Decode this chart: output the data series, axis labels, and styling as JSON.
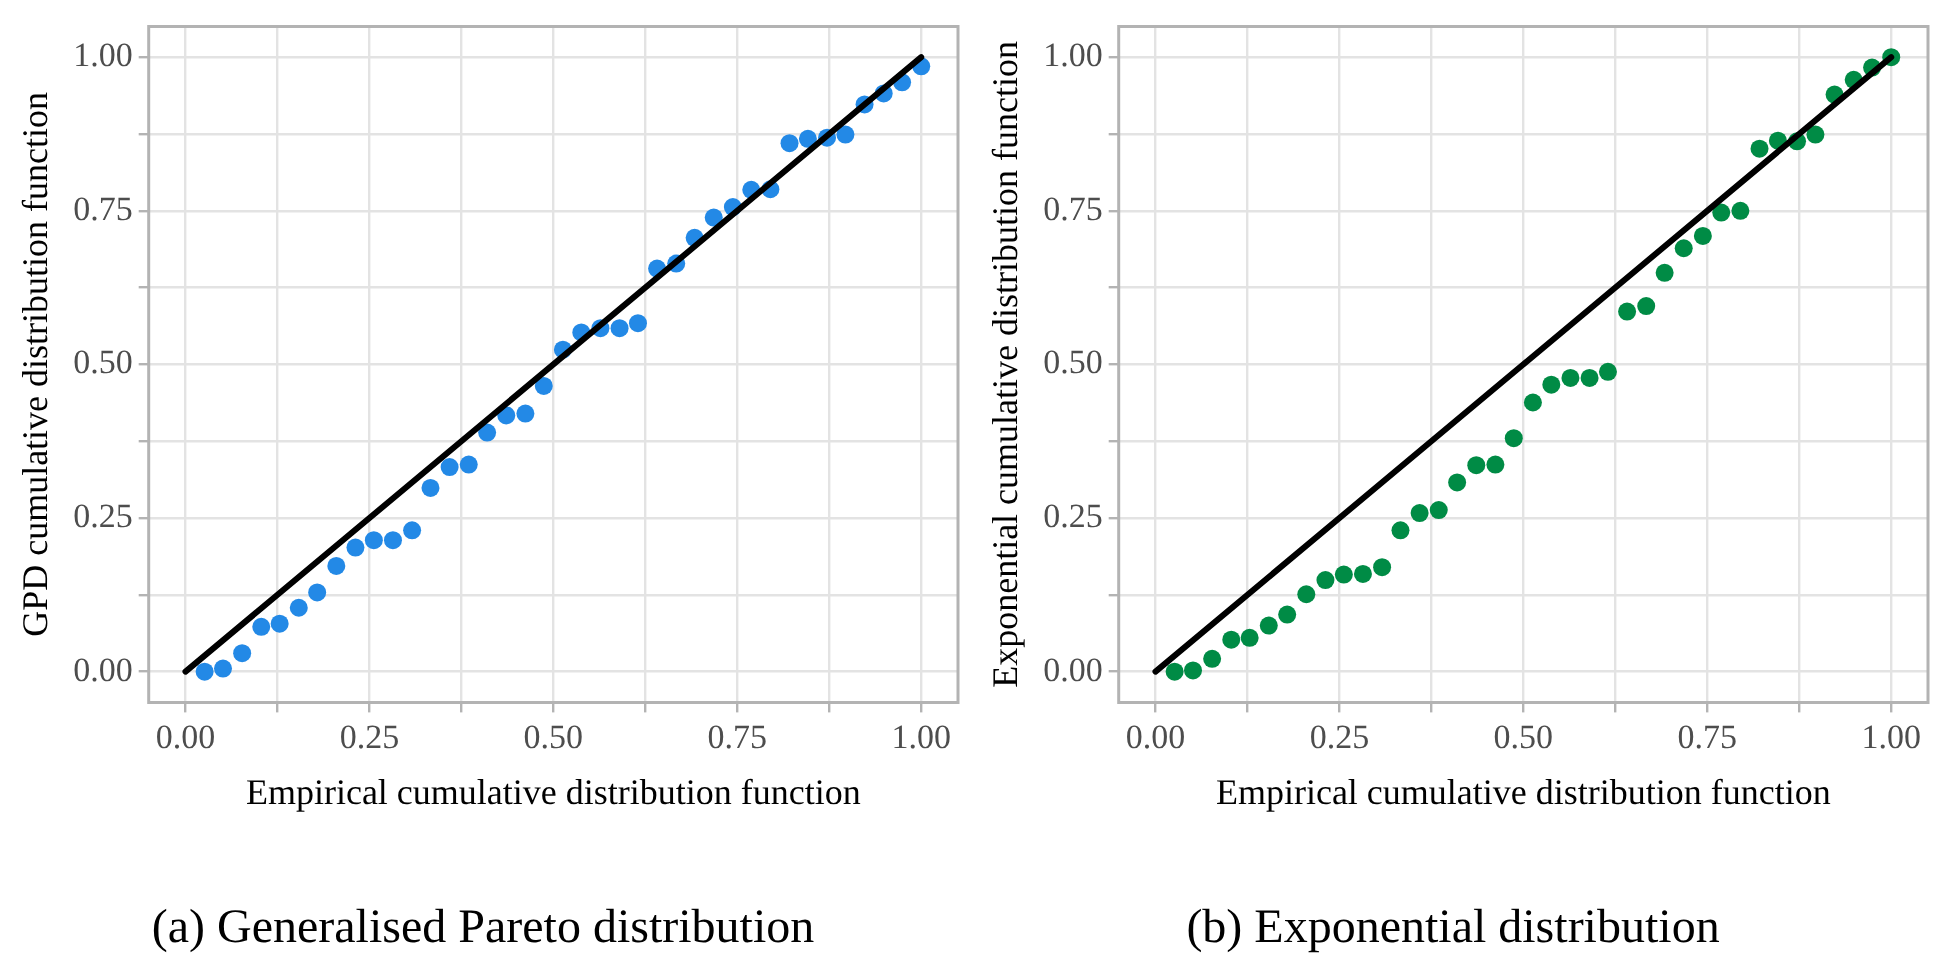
{
  "chart_data": [
    {
      "type": "scatter",
      "title": "(a) Generalised Pareto distribution",
      "xlabel": "Empirical cumulative distribution function",
      "ylabel": "GPD cumulative distribution function",
      "xlim": [
        -0.05,
        1.05
      ],
      "ylim": [
        -0.05,
        1.05
      ],
      "xticks": [
        {
          "value": 0,
          "label": "0.00"
        },
        {
          "value": 0.125,
          "label": null
        },
        {
          "value": 0.25,
          "label": "0.25"
        },
        {
          "value": 0.375,
          "label": null
        },
        {
          "value": 0.5,
          "label": "0.50"
        },
        {
          "value": 0.625,
          "label": null
        },
        {
          "value": 0.75,
          "label": "0.75"
        },
        {
          "value": 0.875,
          "label": null
        },
        {
          "value": 1,
          "label": "1.00"
        }
      ],
      "yticks": [
        {
          "value": 0,
          "label": "0.00"
        },
        {
          "value": 0.125,
          "label": null
        },
        {
          "value": 0.25,
          "label": "0.25"
        },
        {
          "value": 0.375,
          "label": null
        },
        {
          "value": 0.5,
          "label": "0.50"
        },
        {
          "value": 0.625,
          "label": null
        },
        {
          "value": 0.75,
          "label": "0.75"
        },
        {
          "value": 0.875,
          "label": null
        },
        {
          "value": 1,
          "label": "1.00"
        }
      ],
      "grid": true,
      "legend": false,
      "series": [
        {
          "type": "scatter",
          "marker": "circle",
          "color": "#2389e6",
          "x": [
            0.026,
            0.051,
            0.077,
            0.103,
            0.128,
            0.154,
            0.179,
            0.205,
            0.231,
            0.256,
            0.282,
            0.308,
            0.333,
            0.359,
            0.385,
            0.41,
            0.436,
            0.462,
            0.487,
            0.513,
            0.538,
            0.564,
            0.59,
            0.615,
            0.641,
            0.667,
            0.692,
            0.718,
            0.744,
            0.769,
            0.795,
            0.821,
            0.846,
            0.872,
            0.897,
            0.923,
            0.949,
            0.974,
            1.0
          ],
          "values": [
            0.0,
            0.005,
            0.03,
            0.073,
            0.078,
            0.104,
            0.129,
            0.172,
            0.202,
            0.214,
            0.214,
            0.23,
            0.299,
            0.333,
            0.337,
            0.389,
            0.417,
            0.42,
            0.465,
            0.524,
            0.552,
            0.559,
            0.559,
            0.567,
            0.656,
            0.664,
            0.706,
            0.739,
            0.756,
            0.784,
            0.785,
            0.86,
            0.867,
            0.869,
            0.874,
            0.923,
            0.941,
            0.959,
            0.985
          ]
        },
        {
          "type": "line",
          "marker": "none",
          "color": "#000000",
          "x": [
            0,
            1
          ],
          "values": [
            0,
            1
          ]
        }
      ]
    },
    {
      "type": "scatter",
      "title": "(b) Exponential distribution",
      "xlabel": "Empirical cumulative distribution function",
      "ylabel": "Exponential cumulative distribution function",
      "xlim": [
        -0.05,
        1.05
      ],
      "ylim": [
        -0.05,
        1.05
      ],
      "xticks": [
        {
          "value": 0,
          "label": "0.00"
        },
        {
          "value": 0.125,
          "label": null
        },
        {
          "value": 0.25,
          "label": "0.25"
        },
        {
          "value": 0.375,
          "label": null
        },
        {
          "value": 0.5,
          "label": "0.50"
        },
        {
          "value": 0.625,
          "label": null
        },
        {
          "value": 0.75,
          "label": "0.75"
        },
        {
          "value": 0.875,
          "label": null
        },
        {
          "value": 1,
          "label": "1.00"
        }
      ],
      "yticks": [
        {
          "value": 0,
          "label": "0.00"
        },
        {
          "value": 0.125,
          "label": null
        },
        {
          "value": 0.25,
          "label": "0.25"
        },
        {
          "value": 0.375,
          "label": null
        },
        {
          "value": 0.5,
          "label": "0.50"
        },
        {
          "value": 0.625,
          "label": null
        },
        {
          "value": 0.75,
          "label": "0.75"
        },
        {
          "value": 0.875,
          "label": null
        },
        {
          "value": 1,
          "label": "1.00"
        }
      ],
      "grid": true,
      "legend": false,
      "series": [
        {
          "type": "scatter",
          "marker": "circle",
          "color": "#008b45",
          "x": [
            0.026,
            0.051,
            0.077,
            0.103,
            0.128,
            0.154,
            0.179,
            0.205,
            0.231,
            0.256,
            0.282,
            0.308,
            0.333,
            0.359,
            0.385,
            0.41,
            0.436,
            0.462,
            0.487,
            0.513,
            0.538,
            0.564,
            0.59,
            0.615,
            0.641,
            0.667,
            0.692,
            0.718,
            0.744,
            0.769,
            0.795,
            0.821,
            0.846,
            0.872,
            0.897,
            0.923,
            0.949,
            0.974,
            1.0
          ],
          "values": [
            0.0,
            0.002,
            0.021,
            0.052,
            0.055,
            0.075,
            0.093,
            0.126,
            0.149,
            0.158,
            0.159,
            0.17,
            0.23,
            0.258,
            0.263,
            0.308,
            0.336,
            0.337,
            0.38,
            0.438,
            0.467,
            0.478,
            0.478,
            0.488,
            0.586,
            0.595,
            0.649,
            0.689,
            0.709,
            0.747,
            0.75,
            0.851,
            0.864,
            0.863,
            0.874,
            0.939,
            0.963,
            0.983,
            1.0
          ]
        },
        {
          "type": "line",
          "marker": "none",
          "color": "#000000",
          "x": [
            0,
            1
          ],
          "values": [
            0,
            1
          ]
        }
      ]
    }
  ]
}
